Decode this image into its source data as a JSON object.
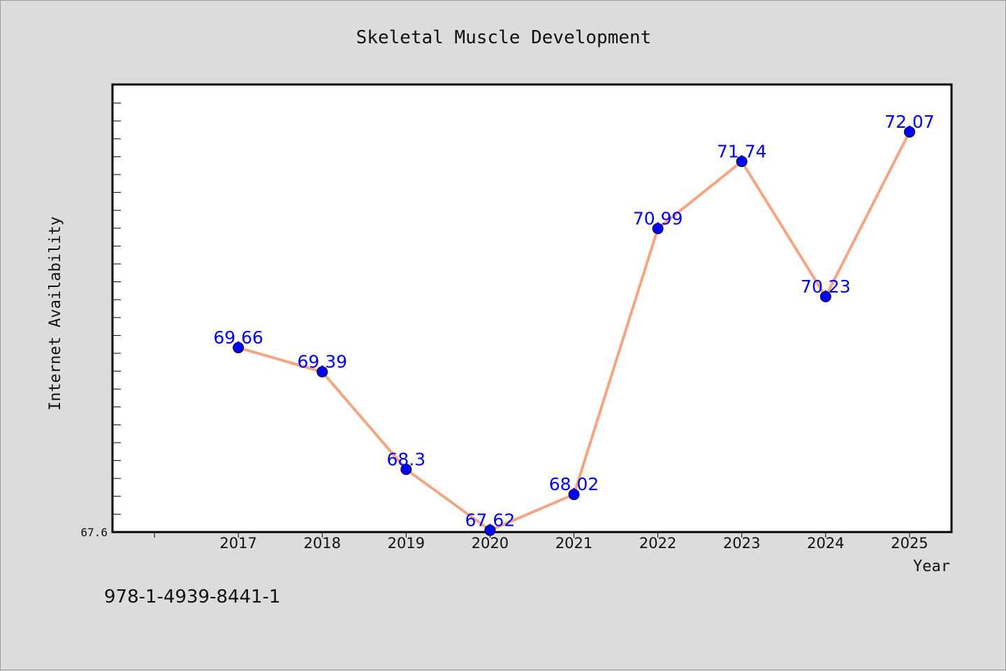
{
  "isbn": "978-1-4939-8441-1",
  "colors": {
    "background": "#dcdcdc",
    "plot_background": "#ffffff",
    "line": "#f4a582",
    "marker": "#0000ff",
    "data_label": "#0000ee"
  },
  "chart_data": {
    "type": "line",
    "title": "Skeletal Muscle Development",
    "xlabel": "Year",
    "ylabel": "Internet Availability",
    "categories": [
      "2017",
      "2018",
      "2019",
      "2020",
      "2021",
      "2022",
      "2023",
      "2024",
      "2025"
    ],
    "series": [
      {
        "values": [
          69.66,
          69.39,
          68.3,
          67.62,
          68.02,
          70.99,
          71.74,
          70.23,
          72.07
        ],
        "labels": [
          "69.66",
          "69.39",
          "68.3",
          "67.62",
          "68.02",
          "70.99",
          "71.74",
          "70.23",
          "72.07"
        ]
      }
    ],
    "y_tick_labels": [
      "67.6"
    ],
    "ylim": [
      67.6,
      72.6
    ],
    "xlim": [
      2015.5,
      2025.5
    ],
    "grid": false,
    "legend": "none"
  }
}
